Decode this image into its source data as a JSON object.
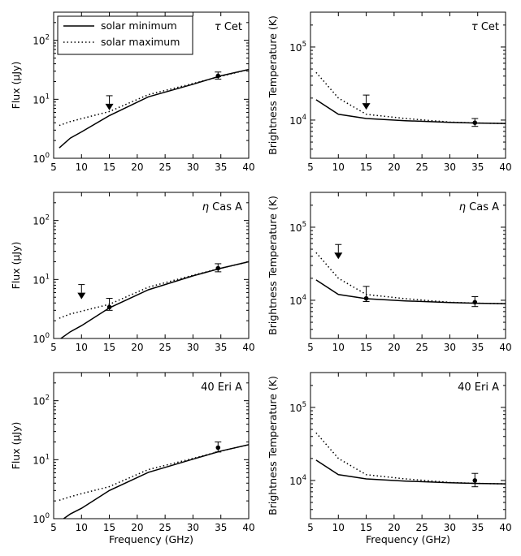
{
  "legend": {
    "entries": [
      "solar minimum",
      "solar maximum"
    ],
    "placement": "upper-left of top-left panel"
  },
  "chart_data": [
    {
      "type": "line",
      "star": "τ Cet",
      "xlabel": "",
      "ylabel": "Flux (μJy)",
      "xlim": [
        5,
        40
      ],
      "ylim": [
        1,
        300
      ],
      "yscale": "log",
      "xticks": [
        "5",
        "10",
        "15",
        "20",
        "25",
        "30",
        "35",
        "40"
      ],
      "yticks": [
        {
          "base": "10",
          "exp": "0",
          "value": 1
        },
        {
          "base": "10",
          "exp": "1",
          "value": 10
        },
        {
          "base": "10",
          "exp": "2",
          "value": 100
        }
      ],
      "series": [
        {
          "name": "solar minimum",
          "style": "solid",
          "x": [
            6,
            8,
            10,
            15,
            22,
            30,
            35,
            40
          ],
          "y": [
            1.5,
            2.2,
            2.8,
            5.3,
            11,
            18,
            25,
            32
          ]
        },
        {
          "name": "solar maximum",
          "style": "dotted",
          "x": [
            6,
            8,
            10,
            15,
            22,
            30,
            35,
            40
          ],
          "y": [
            3.6,
            4.2,
            4.7,
            6.2,
            12,
            18.5,
            24.5,
            32
          ]
        }
      ],
      "points": [
        {
          "x": 34.5,
          "y": 25,
          "yerr": [
            22,
            29
          ]
        }
      ],
      "upper_limits": [
        {
          "x": 15,
          "y": 11.5
        }
      ]
    },
    {
      "type": "line",
      "star": "τ Cet",
      "xlabel": "",
      "ylabel": "Brightness Temperature (K)",
      "xlim": [
        5,
        40
      ],
      "ylim": [
        3000,
        300000
      ],
      "yscale": "log",
      "xticks": [
        "5",
        "10",
        "15",
        "20",
        "25",
        "30",
        "35",
        "40"
      ],
      "yticks": [
        {
          "base": "10",
          "exp": "4",
          "value": 10000
        },
        {
          "base": "10",
          "exp": "5",
          "value": 100000
        }
      ],
      "series": [
        {
          "name": "solar minimum",
          "style": "solid",
          "x": [
            6,
            10,
            15,
            22,
            30,
            35,
            40
          ],
          "y": [
            19000,
            12000,
            10500,
            9800,
            9300,
            9100,
            9000
          ]
        },
        {
          "name": "solar maximum",
          "style": "dotted",
          "x": [
            6,
            8,
            10,
            15,
            22,
            30,
            35,
            40
          ],
          "y": [
            45000,
            30000,
            20000,
            12000,
            10500,
            9400,
            9100,
            9000
          ]
        }
      ],
      "points": [
        {
          "x": 34.5,
          "y": 9200,
          "yerr": [
            8200,
            10500
          ]
        }
      ],
      "upper_limits": [
        {
          "x": 15,
          "y": 22000
        }
      ]
    },
    {
      "type": "line",
      "star": "η Cas A",
      "xlabel": "",
      "ylabel": "Flux (μJy)",
      "xlim": [
        5,
        40
      ],
      "ylim": [
        1,
        300
      ],
      "yscale": "log",
      "xticks": [
        "5",
        "10",
        "15",
        "20",
        "25",
        "30",
        "35",
        "40"
      ],
      "yticks": [
        {
          "base": "10",
          "exp": "0",
          "value": 1
        },
        {
          "base": "10",
          "exp": "1",
          "value": 10
        },
        {
          "base": "10",
          "exp": "2",
          "value": 100
        }
      ],
      "series": [
        {
          "name": "solar minimum",
          "style": "solid",
          "x": [
            6.3,
            8,
            10,
            15,
            22,
            30,
            35,
            40
          ],
          "y": [
            1,
            1.3,
            1.65,
            3.3,
            6.7,
            11.5,
            15.5,
            20
          ]
        },
        {
          "name": "solar maximum",
          "style": "dotted",
          "x": [
            6,
            8,
            10,
            15,
            22,
            30,
            35,
            40
          ],
          "y": [
            2.2,
            2.6,
            2.9,
            3.8,
            7.4,
            11.8,
            15.5,
            20
          ]
        }
      ],
      "points": [
        {
          "x": 15,
          "y": 3.4,
          "yerr": [
            3.0,
            4.8
          ]
        },
        {
          "x": 34.5,
          "y": 15.5,
          "yerr": [
            13.5,
            18.5
          ]
        }
      ],
      "upper_limits": [
        {
          "x": 10,
          "y": 8.2
        }
      ]
    },
    {
      "type": "line",
      "star": "η Cas A",
      "xlabel": "",
      "ylabel": "Brightness Temperature (K)",
      "xlim": [
        5,
        40
      ],
      "ylim": [
        3000,
        300000
      ],
      "yscale": "log",
      "xticks": [
        "5",
        "10",
        "15",
        "20",
        "25",
        "30",
        "35",
        "40"
      ],
      "yticks": [
        {
          "base": "10",
          "exp": "4",
          "value": 10000
        },
        {
          "base": "10",
          "exp": "5",
          "value": 100000
        }
      ],
      "series": [
        {
          "name": "solar minimum",
          "style": "solid",
          "x": [
            6,
            10,
            15,
            22,
            30,
            35,
            40
          ],
          "y": [
            19000,
            12000,
            10500,
            9800,
            9300,
            9100,
            9000
          ]
        },
        {
          "name": "solar maximum",
          "style": "dotted",
          "x": [
            6,
            8,
            10,
            15,
            22,
            30,
            35,
            40
          ],
          "y": [
            45000,
            30000,
            20000,
            12000,
            10500,
            9400,
            9100,
            9000
          ]
        }
      ],
      "points": [
        {
          "x": 15,
          "y": 10600,
          "yerr": [
            9600,
            15500
          ]
        },
        {
          "x": 34.5,
          "y": 9400,
          "yerr": [
            8200,
            11200
          ]
        }
      ],
      "upper_limits": [
        {
          "x": 10,
          "y": 58000
        }
      ]
    },
    {
      "type": "line",
      "star": "40 Eri A",
      "xlabel": "Frequency (GHz)",
      "ylabel": "Flux (μJy)",
      "xlim": [
        5,
        40
      ],
      "ylim": [
        1,
        300
      ],
      "yscale": "log",
      "xticks": [
        "5",
        "10",
        "15",
        "20",
        "25",
        "30",
        "35",
        "40"
      ],
      "yticks": [
        {
          "base": "10",
          "exp": "0",
          "value": 1
        },
        {
          "base": "10",
          "exp": "1",
          "value": 10
        },
        {
          "base": "10",
          "exp": "2",
          "value": 100
        }
      ],
      "series": [
        {
          "name": "solar minimum",
          "style": "solid",
          "x": [
            6.8,
            8,
            10,
            15,
            22,
            30,
            35,
            40
          ],
          "y": [
            1,
            1.2,
            1.5,
            3,
            6.1,
            10.2,
            14,
            18
          ]
        },
        {
          "name": "solar maximum",
          "style": "dotted",
          "x": [
            6,
            8,
            10,
            15,
            22,
            30,
            35,
            40
          ],
          "y": [
            2.05,
            2.35,
            2.65,
            3.5,
            6.8,
            10.5,
            14,
            18
          ]
        }
      ],
      "points": [
        {
          "x": 34.5,
          "y": 16,
          "yerr": [
            13.5,
            20
          ]
        }
      ],
      "upper_limits": []
    },
    {
      "type": "line",
      "star": "40 Eri A",
      "xlabel": "Frequency (GHz)",
      "ylabel": "Brightness Temperature (K)",
      "xlim": [
        5,
        40
      ],
      "ylim": [
        3000,
        300000
      ],
      "yscale": "log",
      "xticks": [
        "5",
        "10",
        "15",
        "20",
        "25",
        "30",
        "35",
        "40"
      ],
      "yticks": [
        {
          "base": "10",
          "exp": "4",
          "value": 10000
        },
        {
          "base": "10",
          "exp": "5",
          "value": 100000
        }
      ],
      "series": [
        {
          "name": "solar minimum",
          "style": "solid",
          "x": [
            6,
            10,
            15,
            22,
            30,
            35,
            40
          ],
          "y": [
            19000,
            12000,
            10500,
            9800,
            9300,
            9100,
            9000
          ]
        },
        {
          "name": "solar maximum",
          "style": "dotted",
          "x": [
            6,
            8,
            10,
            15,
            22,
            30,
            35,
            40
          ],
          "y": [
            45000,
            30000,
            20000,
            12000,
            10500,
            9400,
            9100,
            9000
          ]
        }
      ],
      "points": [
        {
          "x": 34.5,
          "y": 10000,
          "yerr": [
            8200,
            12500
          ]
        }
      ],
      "upper_limits": []
    }
  ]
}
